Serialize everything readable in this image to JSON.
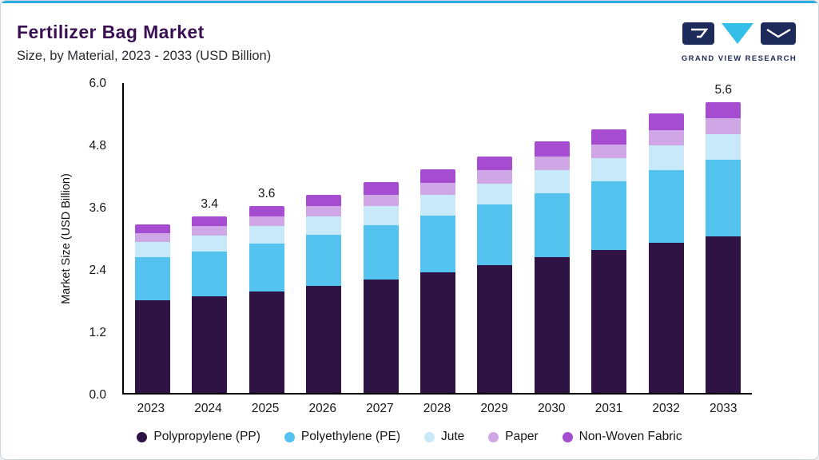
{
  "header": {
    "title": "Fertilizer Bag Market",
    "subtitle": "Size, by Material, 2023 - 2033 (USD Billion)",
    "logo_text": "GRAND VIEW RESEARCH"
  },
  "chart_data": {
    "type": "bar",
    "stacked": true,
    "title": "Fertilizer Bag Market Size, by Material, 2023 - 2033 (USD Billion)",
    "xlabel": "",
    "ylabel": "Market Size (USD Billion)",
    "ylim": [
      0,
      6.0
    ],
    "yticks": [
      "0.0",
      "1.2",
      "2.4",
      "3.6",
      "4.8",
      "6.0"
    ],
    "grid": false,
    "legend_position": "bottom",
    "categories": [
      "2023",
      "2024",
      "2025",
      "2026",
      "2027",
      "2028",
      "2029",
      "2030",
      "2031",
      "2032",
      "2033"
    ],
    "value_labels": [
      "",
      "3.4",
      "3.6",
      "",
      "",
      "",
      "",
      "",
      "",
      "",
      "5.6"
    ],
    "totals": [
      3.25,
      3.4,
      3.6,
      3.82,
      4.06,
      4.3,
      4.56,
      4.84,
      5.08,
      5.38,
      5.6
    ],
    "series": [
      {
        "name": "Polypropylene (PP)",
        "color": "#2e1344",
        "values": [
          1.78,
          1.86,
          1.96,
          2.07,
          2.19,
          2.32,
          2.46,
          2.61,
          2.75,
          2.9,
          3.02
        ]
      },
      {
        "name": "Polyethylene (PE)",
        "color": "#55c3f0",
        "values": [
          0.83,
          0.87,
          0.92,
          0.98,
          1.04,
          1.1,
          1.17,
          1.24,
          1.32,
          1.4,
          1.47
        ]
      },
      {
        "name": "Jute",
        "color": "#c7e9f9",
        "values": [
          0.3,
          0.31,
          0.33,
          0.35,
          0.37,
          0.39,
          0.41,
          0.44,
          0.45,
          0.47,
          0.5
        ]
      },
      {
        "name": "Paper",
        "color": "#cfa6e6",
        "values": [
          0.17,
          0.18,
          0.19,
          0.2,
          0.22,
          0.23,
          0.25,
          0.26,
          0.27,
          0.29,
          0.31
        ]
      },
      {
        "name": "Non-Woven Fabric",
        "color": "#a64cd0",
        "values": [
          0.17,
          0.18,
          0.2,
          0.22,
          0.24,
          0.26,
          0.27,
          0.29,
          0.29,
          0.32,
          0.3
        ]
      }
    ]
  }
}
